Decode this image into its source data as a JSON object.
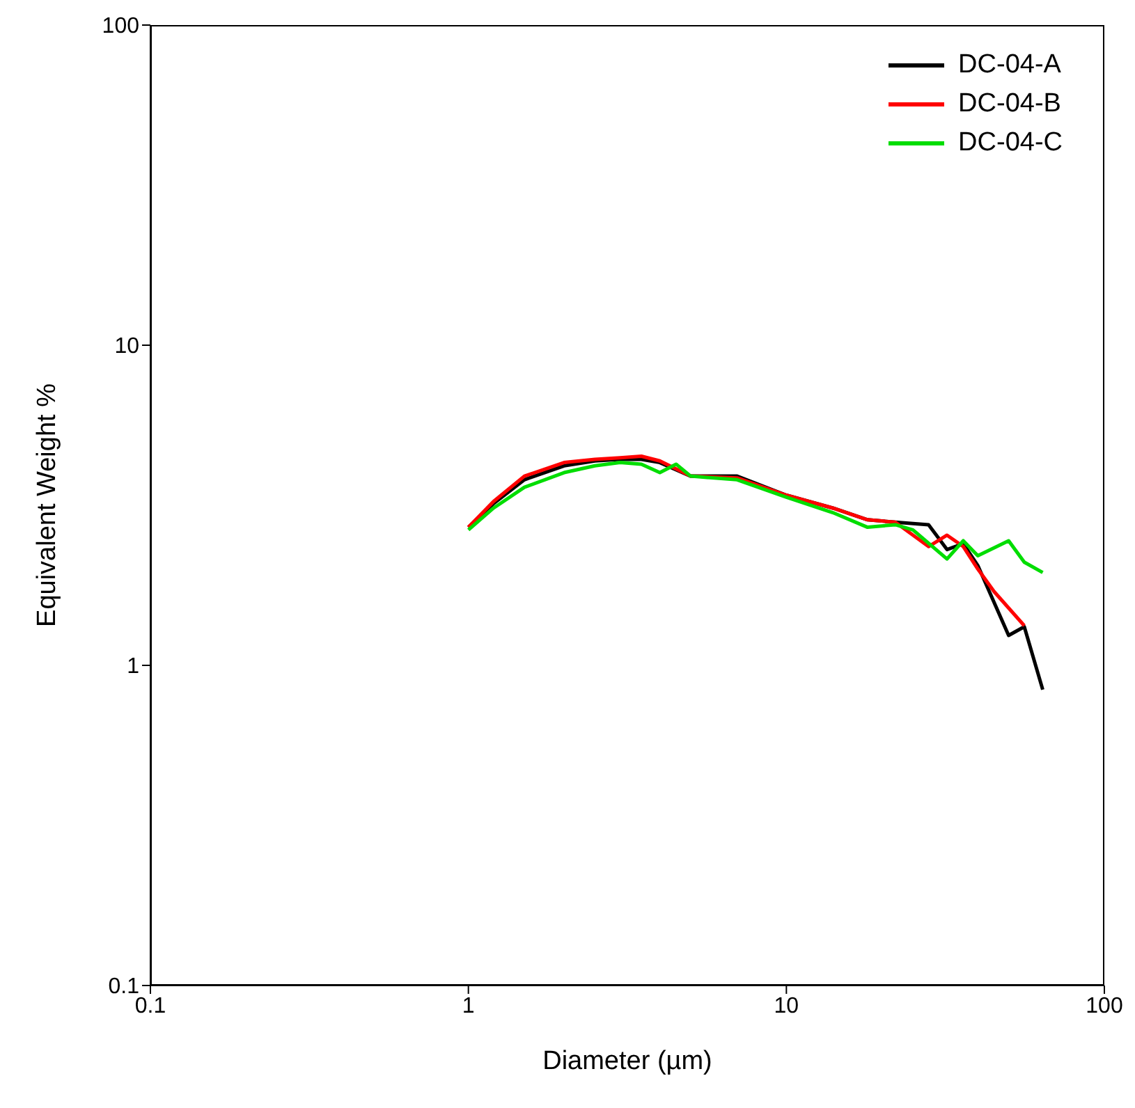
{
  "chart_data": {
    "type": "line",
    "xlabel": "Diameter (µm)",
    "ylabel": "Equivalent Weight %",
    "log": "xy",
    "xlim": [
      0.1,
      100
    ],
    "xticks": [
      0.1,
      1,
      10,
      100
    ],
    "ylim": [
      0.1,
      100
    ],
    "yticks": [
      0.1,
      1,
      10,
      100
    ],
    "legend": "top right",
    "marker": "none",
    "series": [
      {
        "name": "DC-04-A",
        "color": "#000000",
        "x": [
          1,
          1.2,
          1.5,
          2,
          2.5,
          3,
          3.5,
          4,
          5,
          7,
          10,
          14,
          18,
          22,
          28,
          32,
          36,
          40,
          50,
          56,
          64
        ],
        "values": [
          2.7,
          3.2,
          3.8,
          4.2,
          4.35,
          4.4,
          4.4,
          4.3,
          3.9,
          3.9,
          3.4,
          3.1,
          2.85,
          2.8,
          2.75,
          2.3,
          2.4,
          2.05,
          1.24,
          1.32,
          0.84
        ]
      },
      {
        "name": "DC-04-B",
        "color": "#ff0000",
        "x": [
          1,
          1.2,
          1.5,
          2,
          2.5,
          3,
          3.5,
          4,
          5,
          7,
          10,
          14,
          18,
          22,
          28,
          32,
          36,
          40,
          45,
          56
        ],
        "values": [
          2.7,
          3.25,
          3.9,
          4.3,
          4.4,
          4.45,
          4.5,
          4.35,
          3.9,
          3.85,
          3.4,
          3.1,
          2.85,
          2.8,
          2.35,
          2.55,
          2.35,
          2.0,
          1.7,
          1.33
        ]
      },
      {
        "name": "DC-04-C",
        "color": "#00dd00",
        "x": [
          1,
          1.2,
          1.5,
          2,
          2.5,
          3,
          3.5,
          4,
          4.5,
          5,
          7,
          10,
          14,
          18,
          22,
          25,
          32,
          36,
          40,
          50,
          56,
          64
        ],
        "values": [
          2.65,
          3.1,
          3.6,
          4.0,
          4.2,
          4.3,
          4.25,
          4.0,
          4.25,
          3.9,
          3.8,
          3.35,
          3.0,
          2.7,
          2.75,
          2.65,
          2.15,
          2.45,
          2.2,
          2.45,
          2.1,
          1.95
        ]
      }
    ]
  }
}
